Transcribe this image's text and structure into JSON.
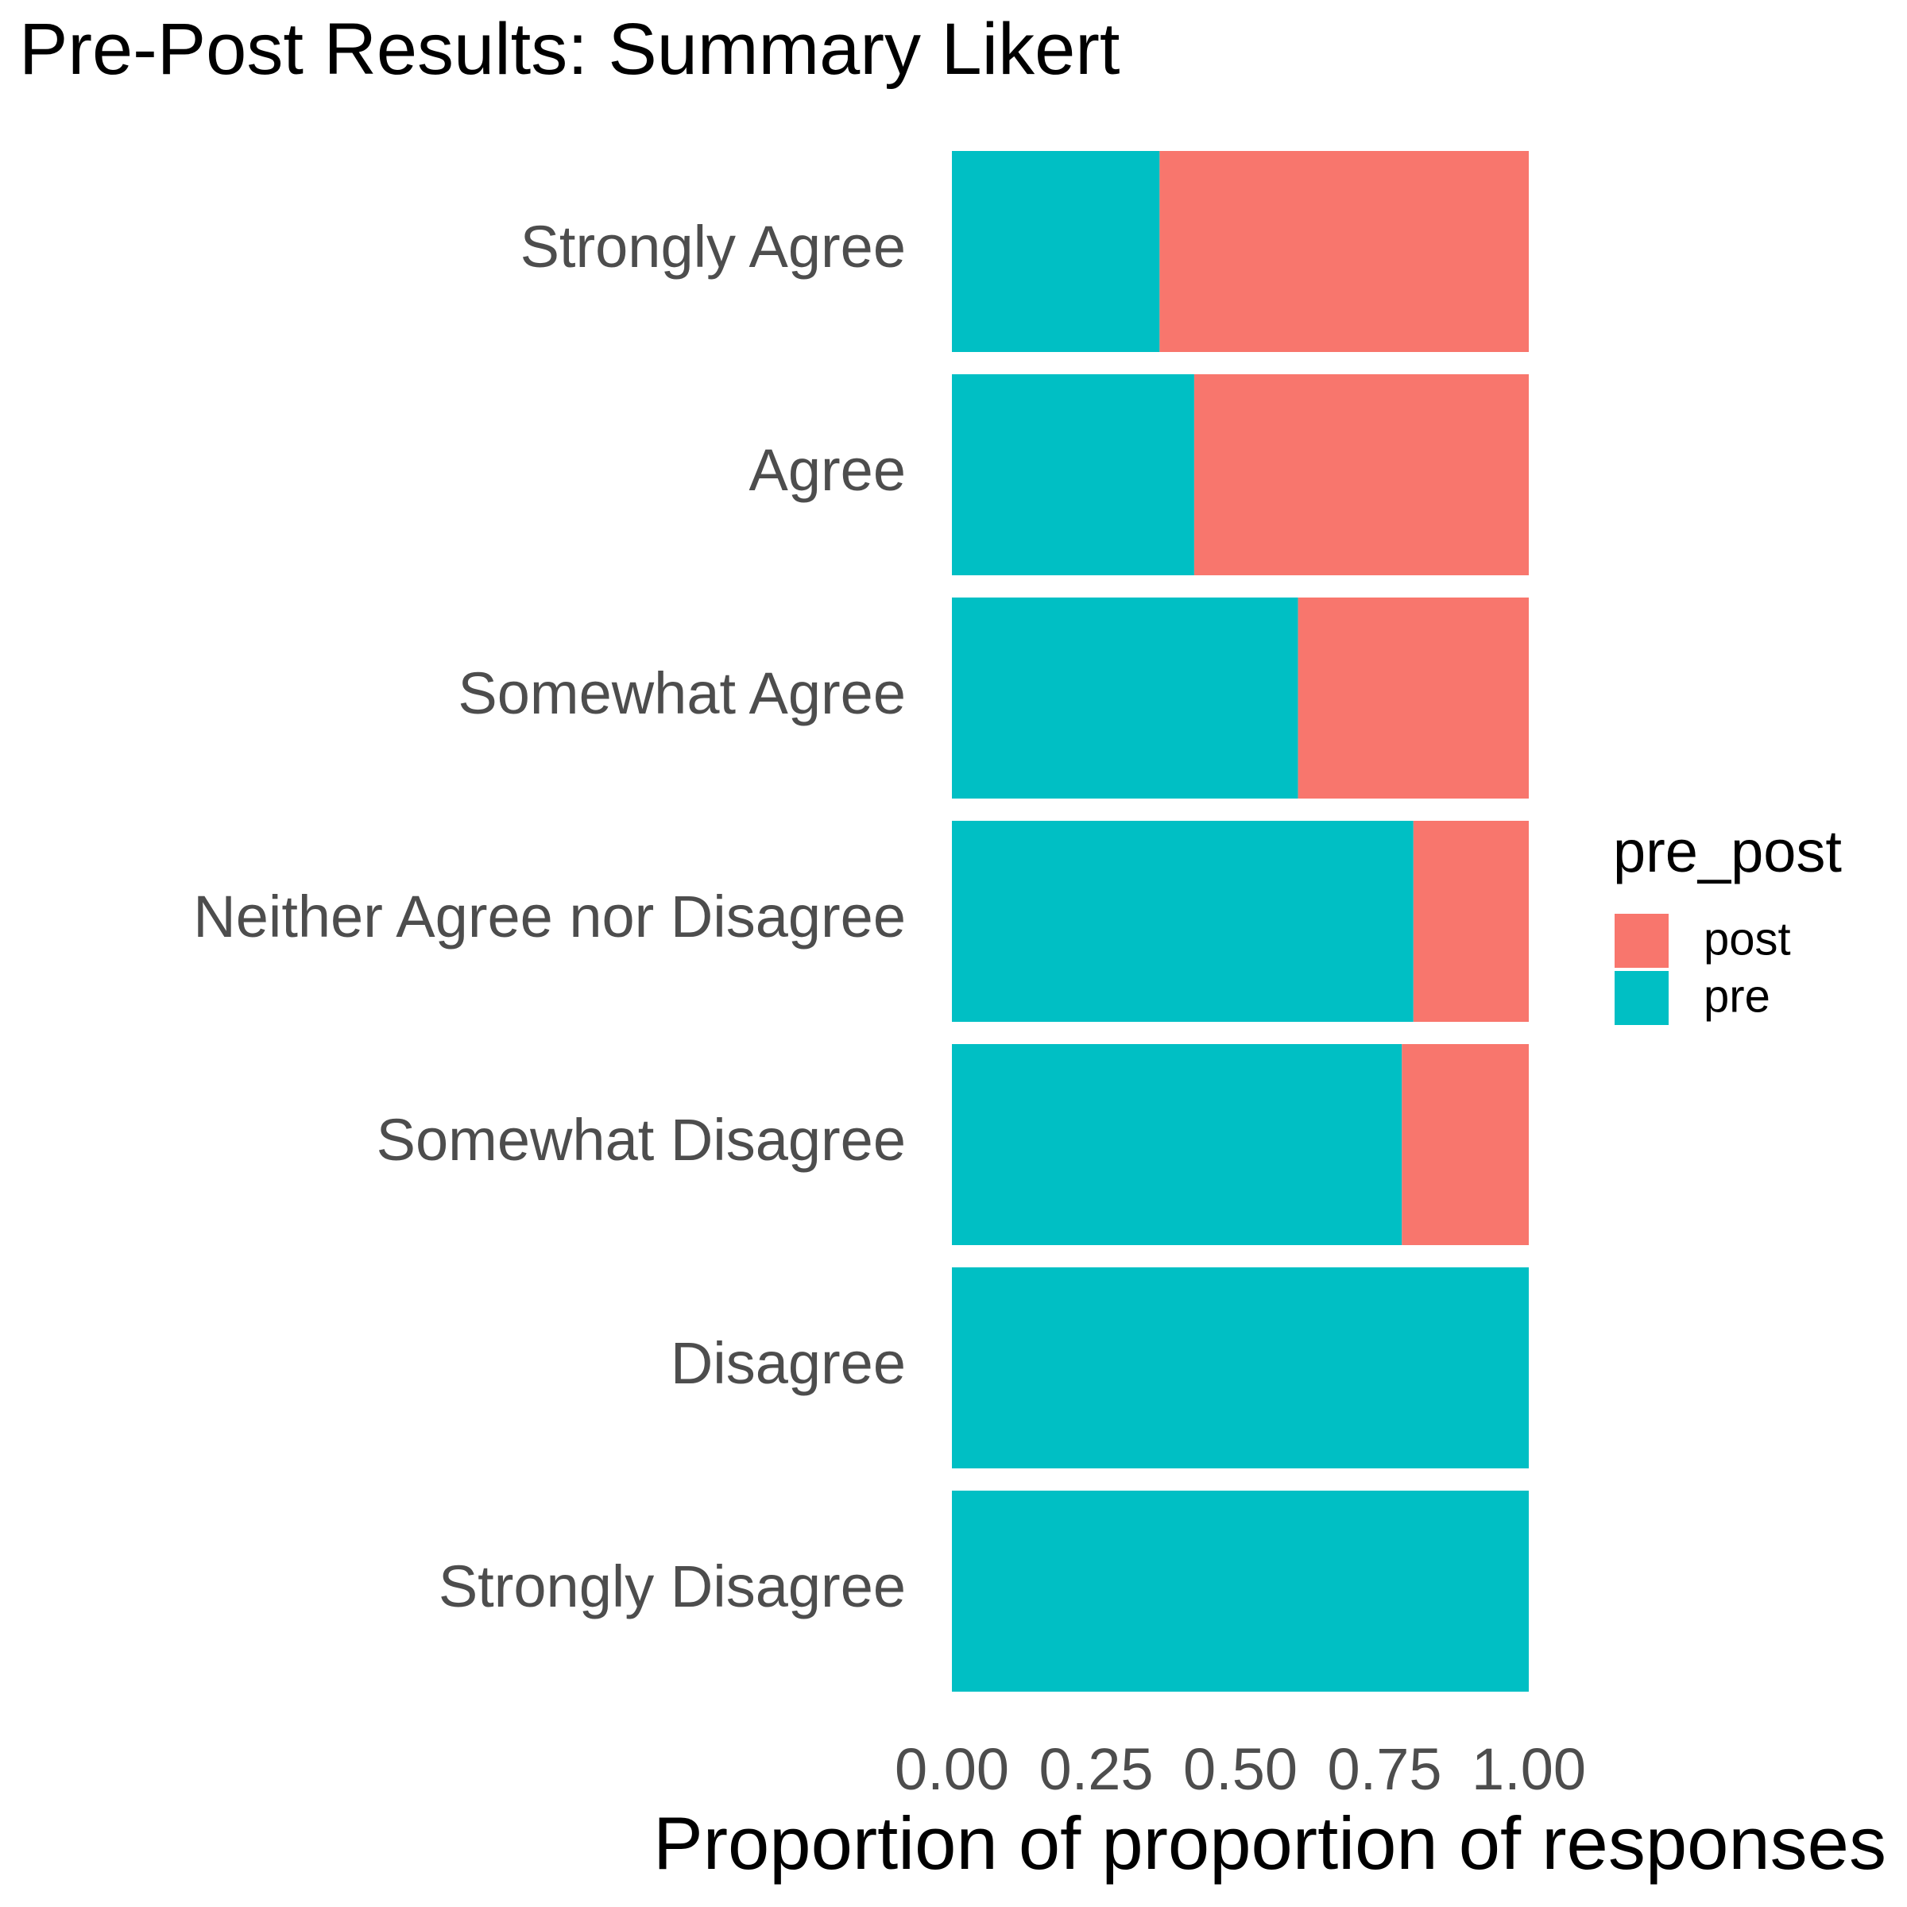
{
  "chart_data": {
    "type": "bar",
    "orientation": "horizontal",
    "stacked": true,
    "title": "Pre-Post Results: Summary Likert",
    "xlabel": "Proportion of proportion of responses",
    "ylabel": "",
    "xlim": [
      0,
      1
    ],
    "xticks": [
      "0.00",
      "0.25",
      "0.50",
      "0.75",
      "1.00"
    ],
    "categories": [
      "Strongly Agree",
      "Agree",
      "Somewhat Agree",
      "Neither Agree nor Disagree",
      "Somewhat Disagree",
      "Disagree",
      "Strongly Disagree"
    ],
    "series": [
      {
        "name": "pre",
        "color": "#00BFC4",
        "values": [
          0.36,
          0.42,
          0.6,
          0.8,
          0.78,
          1.0,
          1.0
        ]
      },
      {
        "name": "post",
        "color": "#F8766D",
        "values": [
          0.64,
          0.58,
          0.4,
          0.2,
          0.22,
          0.0,
          0.0
        ]
      }
    ],
    "legend": {
      "title": "pre_post",
      "position": "right",
      "entries": [
        {
          "label": "post",
          "color": "#F8766D"
        },
        {
          "label": "pre",
          "color": "#00BFC4"
        }
      ]
    },
    "grid": false
  }
}
